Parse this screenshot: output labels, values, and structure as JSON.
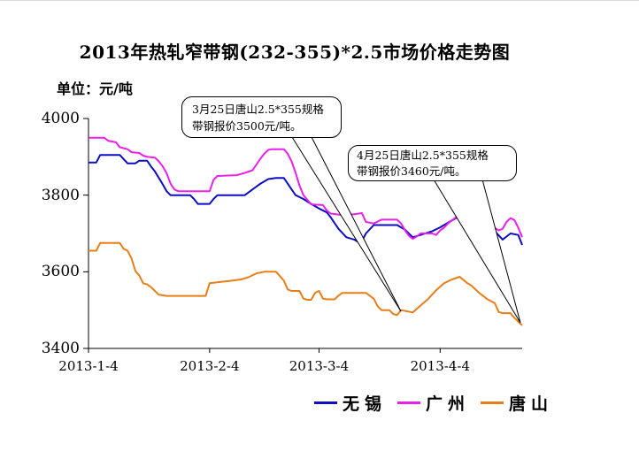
{
  "page": {
    "background": "#ffffff"
  },
  "header": {
    "title": "2013年热轧窄带钢(232-355)*2.5市场价格走势图",
    "unit_label": "单位：元/吨"
  },
  "callouts": [
    {
      "id": "mar25",
      "line1": "3月25日唐山2.5*355规格",
      "line2": "带钢报价3500元/吨。"
    },
    {
      "id": "apr25",
      "line1": "4月25日唐山2.5*355规格",
      "line2": "带钢报价3460元/吨。"
    }
  ],
  "chart_data": {
    "type": "line",
    "title": "2013年热轧窄带钢(232-355)*2.5市场价格走势图",
    "ylabel": "元/吨",
    "xlabel": "",
    "grid": false,
    "legend_position": "bottom",
    "y_axis": {
      "min": 3400,
      "max": 4000,
      "ticks": [
        4000,
        3800,
        3600,
        3400
      ]
    },
    "x_axis": {
      "start_date": "2013-1-4",
      "end_date": "2013-4-25",
      "total_days": 111,
      "tick_labels": [
        "2013-1-4",
        "2013-2-4",
        "2013-3-4",
        "2013-4-4"
      ],
      "tick_days": [
        0,
        31,
        59,
        90
      ]
    },
    "series": [
      {
        "name": "无锡",
        "slug": "wuxi",
        "color": "#0d0dc4",
        "points": [
          [
            0,
            3885
          ],
          [
            2,
            3885
          ],
          [
            3,
            3905
          ],
          [
            8,
            3905
          ],
          [
            10,
            3883
          ],
          [
            12,
            3883
          ],
          [
            13,
            3890
          ],
          [
            15,
            3890
          ],
          [
            16,
            3875
          ],
          [
            17,
            3862
          ],
          [
            18,
            3845
          ],
          [
            19,
            3828
          ],
          [
            20,
            3810
          ],
          [
            21,
            3800
          ],
          [
            26,
            3800
          ],
          [
            27,
            3790
          ],
          [
            28,
            3777
          ],
          [
            31,
            3777
          ],
          [
            32,
            3790
          ],
          [
            33,
            3800
          ],
          [
            40,
            3800
          ],
          [
            42,
            3815
          ],
          [
            44,
            3830
          ],
          [
            46,
            3842
          ],
          [
            48,
            3845
          ],
          [
            50,
            3845
          ],
          [
            51,
            3830
          ],
          [
            52,
            3815
          ],
          [
            53,
            3800
          ],
          [
            55,
            3790
          ],
          [
            57,
            3777
          ],
          [
            59,
            3765
          ],
          [
            61,
            3755
          ],
          [
            62,
            3742
          ],
          [
            64,
            3712
          ],
          [
            66,
            3690
          ],
          [
            68,
            3684
          ],
          [
            69,
            3678
          ],
          [
            70,
            3680
          ],
          [
            71,
            3700
          ],
          [
            73,
            3722
          ],
          [
            79,
            3722
          ],
          [
            81,
            3710
          ],
          [
            83,
            3690
          ],
          [
            85,
            3696
          ],
          [
            88,
            3706
          ],
          [
            90,
            3716
          ],
          [
            92,
            3728
          ],
          [
            94,
            3740
          ],
          [
            96,
            3752
          ],
          [
            98,
            3756
          ],
          [
            101,
            3736
          ],
          [
            104,
            3706
          ],
          [
            106,
            3684
          ],
          [
            107,
            3692
          ],
          [
            108,
            3700
          ],
          [
            110,
            3696
          ],
          [
            111,
            3670
          ]
        ]
      },
      {
        "name": "广州",
        "slug": "guangzhou",
        "color": "#e820e8",
        "points": [
          [
            0,
            3950
          ],
          [
            4,
            3950
          ],
          [
            5,
            3942
          ],
          [
            7,
            3938
          ],
          [
            8,
            3925
          ],
          [
            10,
            3920
          ],
          [
            11,
            3912
          ],
          [
            13,
            3910
          ],
          [
            14,
            3903
          ],
          [
            15,
            3900
          ],
          [
            17,
            3898
          ],
          [
            18,
            3888
          ],
          [
            19,
            3875
          ],
          [
            20,
            3857
          ],
          [
            21,
            3830
          ],
          [
            22,
            3815
          ],
          [
            23,
            3810
          ],
          [
            31,
            3810
          ],
          [
            32,
            3840
          ],
          [
            33,
            3850
          ],
          [
            38,
            3852
          ],
          [
            40,
            3858
          ],
          [
            42,
            3865
          ],
          [
            43,
            3880
          ],
          [
            44,
            3895
          ],
          [
            45,
            3908
          ],
          [
            46,
            3918
          ],
          [
            47,
            3920
          ],
          [
            50,
            3920
          ],
          [
            51,
            3908
          ],
          [
            52,
            3888
          ],
          [
            53,
            3858
          ],
          [
            54,
            3825
          ],
          [
            55,
            3800
          ],
          [
            56,
            3788
          ],
          [
            57,
            3776
          ],
          [
            60,
            3774
          ],
          [
            61,
            3760
          ],
          [
            62,
            3752
          ],
          [
            65,
            3748
          ],
          [
            68,
            3750
          ],
          [
            70,
            3753
          ],
          [
            71,
            3730
          ],
          [
            73,
            3726
          ],
          [
            75,
            3736
          ],
          [
            79,
            3736
          ],
          [
            80,
            3726
          ],
          [
            81,
            3708
          ],
          [
            82,
            3694
          ],
          [
            83,
            3686
          ],
          [
            84,
            3692
          ],
          [
            85,
            3700
          ],
          [
            88,
            3700
          ],
          [
            89,
            3696
          ],
          [
            90,
            3708
          ],
          [
            91,
            3715
          ],
          [
            92,
            3726
          ],
          [
            94,
            3742
          ],
          [
            95,
            3758
          ],
          [
            96,
            3770
          ],
          [
            99,
            3748
          ],
          [
            102,
            3726
          ],
          [
            105,
            3708
          ],
          [
            106,
            3712
          ],
          [
            107,
            3730
          ],
          [
            108,
            3740
          ],
          [
            109,
            3735
          ],
          [
            110,
            3715
          ],
          [
            111,
            3690
          ]
        ]
      },
      {
        "name": "唐山",
        "slug": "tangshan",
        "color": "#e87e18",
        "points": [
          [
            0,
            3655
          ],
          [
            2,
            3655
          ],
          [
            3,
            3675
          ],
          [
            8,
            3675
          ],
          [
            9,
            3660
          ],
          [
            10,
            3655
          ],
          [
            11,
            3635
          ],
          [
            12,
            3602
          ],
          [
            13,
            3590
          ],
          [
            14,
            3570
          ],
          [
            15,
            3567
          ],
          [
            16,
            3560
          ],
          [
            17,
            3550
          ],
          [
            18,
            3540
          ],
          [
            20,
            3537
          ],
          [
            30,
            3537
          ],
          [
            31,
            3570
          ],
          [
            36,
            3576
          ],
          [
            39,
            3580
          ],
          [
            41,
            3586
          ],
          [
            43,
            3596
          ],
          [
            45,
            3600
          ],
          [
            48,
            3600
          ],
          [
            50,
            3577
          ],
          [
            51,
            3554
          ],
          [
            52,
            3550
          ],
          [
            54,
            3550
          ],
          [
            55,
            3530
          ],
          [
            56,
            3527
          ],
          [
            57,
            3527
          ],
          [
            58,
            3545
          ],
          [
            59,
            3550
          ],
          [
            60,
            3530
          ],
          [
            61,
            3528
          ],
          [
            63,
            3528
          ],
          [
            64,
            3538
          ],
          [
            65,
            3545
          ],
          [
            71,
            3545
          ],
          [
            73,
            3530
          ],
          [
            74,
            3510
          ],
          [
            75,
            3500
          ],
          [
            77,
            3500
          ],
          [
            78,
            3490
          ],
          [
            79,
            3487
          ],
          [
            80,
            3500
          ],
          [
            83,
            3494
          ],
          [
            85,
            3512
          ],
          [
            87,
            3530
          ],
          [
            89,
            3552
          ],
          [
            91,
            3570
          ],
          [
            93,
            3580
          ],
          [
            95,
            3587
          ],
          [
            97,
            3570
          ],
          [
            98,
            3564
          ],
          [
            100,
            3545
          ],
          [
            102,
            3529
          ],
          [
            104,
            3518
          ],
          [
            105,
            3495
          ],
          [
            106,
            3492
          ],
          [
            108,
            3492
          ],
          [
            109,
            3480
          ],
          [
            110,
            3470
          ],
          [
            111,
            3460
          ]
        ]
      }
    ],
    "annotations": [
      {
        "text": "3月25日唐山2.5*355规格带钢报价3500元/吨。",
        "anchor_series": "唐山",
        "anchor_date": "2013-3-25",
        "anchor_value": 3500
      },
      {
        "text": "4月25日唐山2.5*355规格带钢报价3460元/吨。",
        "anchor_series": "唐山",
        "anchor_date": "2013-4-25",
        "anchor_value": 3460
      }
    ]
  }
}
